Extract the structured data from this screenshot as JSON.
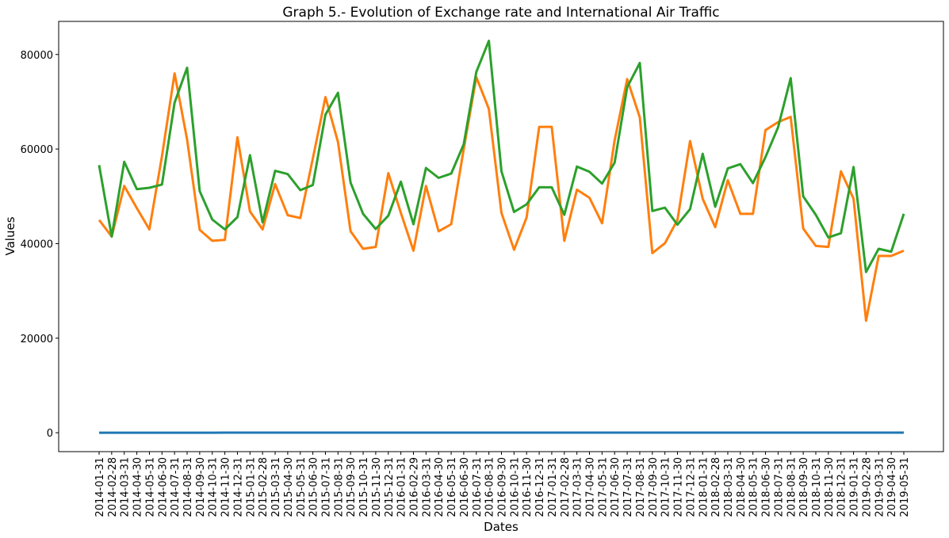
{
  "chart_data": {
    "type": "line",
    "title": "Graph 5.- Evolution of Exchange rate and International Air Traffic",
    "xlabel": "Dates",
    "ylabel": "Values",
    "ylim": [
      -4000,
      87000
    ],
    "yticks": [
      0,
      20000,
      40000,
      60000,
      80000
    ],
    "grid": false,
    "colors": [
      "#1f77b4",
      "#ff7f0e",
      "#2ca02c"
    ],
    "x": [
      "2014-01-31",
      "2014-02-28",
      "2014-03-31",
      "2014-04-30",
      "2014-05-31",
      "2014-06-30",
      "2014-07-31",
      "2014-08-31",
      "2014-09-30",
      "2014-10-31",
      "2014-11-30",
      "2014-12-31",
      "2015-01-31",
      "2015-02-28",
      "2015-03-31",
      "2015-04-30",
      "2015-05-31",
      "2015-06-30",
      "2015-07-31",
      "2015-08-31",
      "2015-09-30",
      "2015-10-31",
      "2015-11-30",
      "2015-12-31",
      "2016-01-31",
      "2016-02-29",
      "2016-03-31",
      "2016-04-30",
      "2016-05-31",
      "2016-06-30",
      "2016-07-31",
      "2016-08-31",
      "2016-09-30",
      "2016-10-31",
      "2016-11-30",
      "2016-12-31",
      "2017-01-31",
      "2017-02-28",
      "2017-03-31",
      "2017-04-30",
      "2017-05-31",
      "2017-06-30",
      "2017-07-31",
      "2017-08-31",
      "2017-09-30",
      "2017-10-31",
      "2017-11-30",
      "2017-12-31",
      "2018-01-31",
      "2018-02-28",
      "2018-03-31",
      "2018-04-30",
      "2018-05-31",
      "2018-06-30",
      "2018-07-31",
      "2018-08-31",
      "2018-09-30",
      "2018-10-31",
      "2018-11-30",
      "2018-12-31",
      "2019-01-31",
      "2019-02-28",
      "2019-03-31",
      "2019-04-30",
      "2019-05-31"
    ],
    "series": [
      {
        "values": [
          13.5,
          13.6,
          13.7,
          13.1,
          12.9,
          13.0,
          13.0,
          13.2,
          13.5,
          13.6,
          13.9,
          14.7,
          14.7,
          15.0,
          15.2,
          15.3,
          15.3,
          15.7,
          16.1,
          16.8,
          16.9,
          16.6,
          16.6,
          17.1,
          18.0,
          18.4,
          17.7,
          17.5,
          18.2,
          18.6,
          18.6,
          18.8,
          19.3,
          19.7,
          20.5,
          20.6,
          21.4,
          20.3,
          18.8,
          18.7,
          18.5,
          17.9,
          17.8,
          17.8,
          17.8,
          18.8,
          18.9,
          19.6,
          18.9,
          18.6,
          18.4,
          18.9,
          19.7,
          20.3,
          18.9,
          19.0,
          18.9,
          19.4,
          20.3,
          19.8,
          19.2,
          19.2,
          19.3,
          19.0,
          19.5
        ]
      },
      {
        "values": [
          45000,
          41500,
          52200,
          47500,
          43000,
          58500,
          76000,
          62000,
          42900,
          40600,
          40800,
          62500,
          46800,
          43000,
          52600,
          46000,
          45400,
          58000,
          71000,
          61500,
          42600,
          38900,
          39300,
          54900,
          46500,
          38500,
          52200,
          42600,
          44100,
          60000,
          75200,
          68500,
          46500,
          38700,
          45500,
          64700,
          64700,
          40600,
          51400,
          49700,
          44300,
          61800,
          74800,
          66700,
          38000,
          40100,
          45000,
          61700,
          49500,
          43500,
          53400,
          46300,
          46300,
          64000,
          65700,
          66800,
          43200,
          39500,
          39300,
          55300,
          49500,
          23700,
          37400,
          37400,
          38500
        ]
      },
      {
        "values": [
          56600,
          41500,
          57300,
          51500,
          51800,
          52500,
          69800,
          77200,
          51100,
          45100,
          43000,
          45600,
          58700,
          44500,
          55400,
          54700,
          51300,
          52400,
          67300,
          71900,
          52900,
          46300,
          43100,
          45900,
          53100,
          44100,
          56000,
          53900,
          54800,
          61000,
          76300,
          82900,
          55300,
          46700,
          48300,
          51900,
          51900,
          46100,
          56300,
          55200,
          52700,
          57100,
          73100,
          78200,
          46900,
          47600,
          44000,
          47300,
          59000,
          47800,
          55900,
          56800,
          52800,
          58300,
          64600,
          75000,
          50000,
          46100,
          41300,
          42200,
          56200,
          34000,
          38900,
          38300,
          46300
        ]
      }
    ]
  }
}
